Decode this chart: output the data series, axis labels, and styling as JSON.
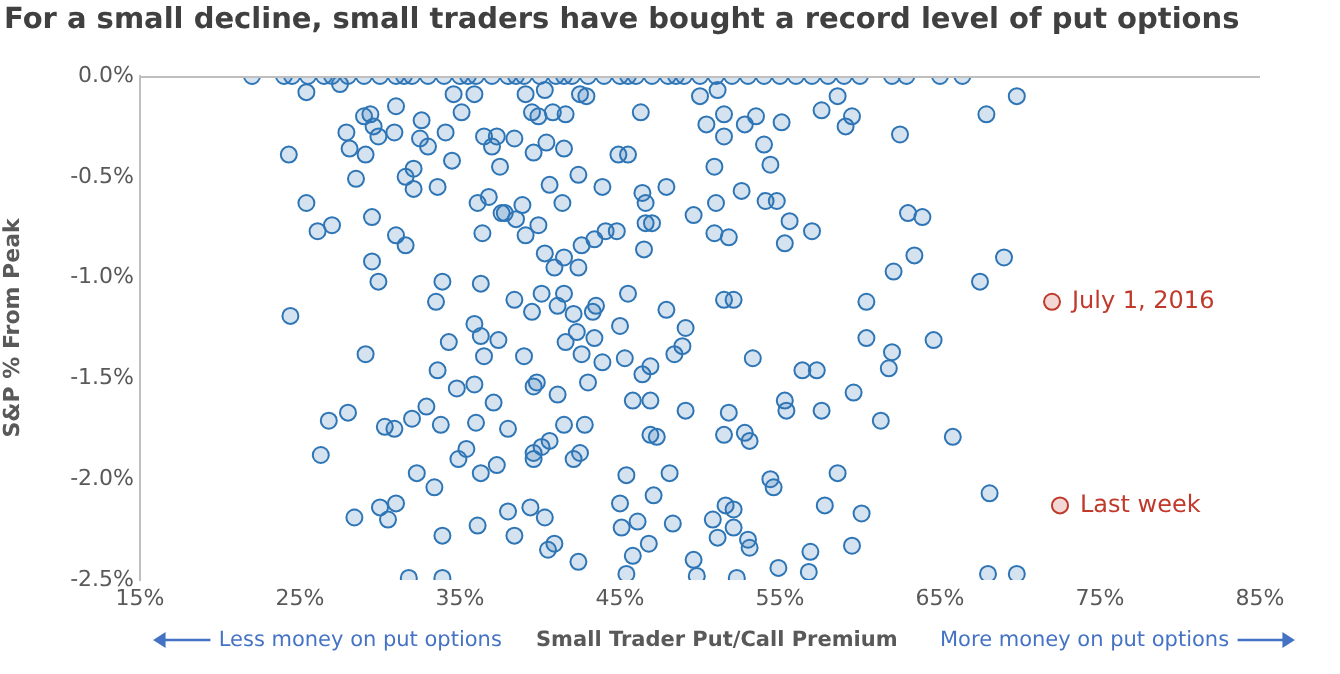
{
  "chart_data": {
    "type": "scatter",
    "title": "For a small decline, small traders have bought a record level of put options",
    "xlabel": "Small Trader Put/Call Premium",
    "ylabel": "S&P % From Peak",
    "xlim": [
      15,
      85
    ],
    "xticks": [
      {
        "value": 15,
        "label": "15%"
      },
      {
        "value": 25,
        "label": "25%"
      },
      {
        "value": 35,
        "label": "35%"
      },
      {
        "value": 45,
        "label": "45%"
      },
      {
        "value": 55,
        "label": "55%"
      },
      {
        "value": 65,
        "label": "65%"
      },
      {
        "value": 75,
        "label": "75%"
      },
      {
        "value": 85,
        "label": "85%"
      }
    ],
    "ylim": [
      -2.5,
      0
    ],
    "yticks": [
      {
        "value": -2.5,
        "label": "-2.5%"
      },
      {
        "value": -2,
        "label": "-2.0%"
      },
      {
        "value": -1.5,
        "label": "-1.5%"
      },
      {
        "value": -1,
        "label": "-1.0%"
      },
      {
        "value": -0.5,
        "label": "-0.5%"
      },
      {
        "value": 0,
        "label": "0.0%"
      }
    ],
    "grid": false,
    "legend": false,
    "marker": "circle",
    "annotations": [
      {
        "text": "July 1, 2016",
        "x": 72,
        "y": -1.12
      },
      {
        "text": "Last week",
        "x": 72.5,
        "y": -2.13
      },
      "Less money on put options",
      "More money on put options"
    ],
    "series": [
      {
        "color": "#2e75b6",
        "x": [
          22,
          24,
          24.5,
          25.5,
          26.5,
          27,
          28,
          29,
          30,
          31,
          31.5,
          32,
          33,
          34,
          35,
          35.5,
          36,
          37,
          38,
          38.5,
          39,
          40,
          41,
          41.5,
          42,
          43,
          44,
          45,
          45.5,
          46,
          47,
          48,
          48.5,
          49,
          50,
          51,
          52,
          53,
          54,
          55,
          56,
          57,
          58,
          59,
          60,
          62,
          62.9,
          65,
          66.4,
          25.4,
          27.5,
          24.3,
          27.9,
          29,
          29.4,
          29.6,
          29.9,
          28.1,
          29.1,
          28.5,
          31,
          30.9,
          32.6,
          32.5,
          33,
          34.1,
          34.6,
          35.1,
          35.9,
          34.5,
          31.6,
          32.1,
          32.1,
          33.6,
          37.5,
          36.5,
          37.3,
          37,
          25.4,
          26.1,
          27,
          29.5,
          31,
          31.6,
          29.5,
          29.9,
          36.1,
          36.8,
          37.6,
          36.4,
          33.9,
          33.5,
          36.3,
          24.4,
          29.1,
          34.3,
          35.9,
          36.3,
          36.5,
          37.4,
          33.6,
          34.8,
          35.9,
          37.1,
          32.9,
          32,
          28,
          26.8,
          30.3,
          30.9,
          33.8,
          36,
          38,
          26.3,
          35.4,
          34.9,
          37.3,
          36.3,
          32.3,
          33.4,
          30,
          31,
          28.4,
          30.5,
          38,
          36.1,
          33.9,
          38.4,
          31.8,
          33.9,
          39.1,
          40.3,
          42.5,
          42.9,
          39.5,
          39.9,
          40.8,
          41.6,
          38.4,
          39.6,
          40.4,
          41.5,
          44.9,
          45.5,
          46.3,
          50,
          51.1,
          50.4,
          51.5,
          51.5,
          52.8,
          53.5,
          55.1,
          54,
          50.9,
          54.4,
          57.6,
          58.6,
          59.1,
          59.5,
          62.5,
          42.4,
          40.6,
          41.4,
          38.9,
          37.8,
          38.5,
          39.9,
          39.1,
          43.9,
          46.4,
          46.6,
          47.9,
          46.6,
          47,
          44.1,
          44.8,
          46.5,
          43.4,
          42.6,
          40.3,
          41.5,
          40.9,
          42.4,
          49.6,
          51,
          50.9,
          51.8,
          52.6,
          54.1,
          54.8,
          55.6,
          57,
          55.3,
          62.1,
          38.4,
          39.5,
          40.1,
          41.1,
          41.5,
          42.1,
          43.3,
          43.5,
          45.5,
          45,
          47.9,
          49.1,
          48.9,
          48.4,
          51.5,
          52.1,
          39,
          41.6,
          42.3,
          42.6,
          43.4,
          43.9,
          45.3,
          46.4,
          46.9,
          39.6,
          39.8,
          41.1,
          43,
          45.8,
          46.9,
          49.1,
          51.8,
          53.3,
          56.4,
          57.3,
          55.3,
          55.4,
          57.6,
          59.6,
          60.4,
          60.4,
          61.8,
          62,
          61.3,
          41.5,
          42.8,
          39.6,
          39.6,
          40.1,
          40.6,
          42.1,
          42.5,
          46.9,
          47.3,
          51.5,
          52.8,
          53.1,
          45.4,
          48.1,
          47.1,
          54.4,
          54.6,
          58.6,
          39.4,
          40.3,
          40.5,
          40.9,
          42.4,
          45,
          45.1,
          46.1,
          46.8,
          45.8,
          45.4,
          48.3,
          49.6,
          49.8,
          50.8,
          51.1,
          51.6,
          52.1,
          52.1,
          53,
          53.1,
          52.3,
          54.9,
          56.9,
          56.8,
          57.8,
          59.5,
          60.1,
          69.8,
          67.9,
          63,
          63.9,
          63.4,
          69,
          67.5,
          64.6,
          65.8,
          68.1,
          68,
          69.8
        ],
        "values": [
          0,
          0,
          0,
          0,
          0,
          0,
          0,
          0,
          0,
          0,
          0,
          0,
          0,
          0,
          0,
          0,
          0,
          0,
          0,
          0,
          0,
          0,
          0,
          0,
          0,
          0,
          0,
          0,
          0,
          0,
          0,
          0,
          0,
          0,
          0,
          0,
          0,
          0,
          0,
          0,
          0,
          0,
          0,
          0,
          0,
          0,
          0,
          0,
          0,
          -0.08,
          -0.04,
          -0.39,
          -0.28,
          -0.2,
          -0.19,
          -0.25,
          -0.3,
          -0.36,
          -0.39,
          -0.51,
          -0.15,
          -0.28,
          -0.22,
          -0.31,
          -0.35,
          -0.28,
          -0.09,
          -0.18,
          -0.09,
          -0.42,
          -0.5,
          -0.46,
          -0.56,
          -0.55,
          -0.45,
          -0.3,
          -0.3,
          -0.35,
          -0.63,
          -0.77,
          -0.74,
          -0.7,
          -0.79,
          -0.84,
          -0.92,
          -1.02,
          -0.63,
          -0.6,
          -0.68,
          -0.78,
          -1.02,
          -1.12,
          -1.03,
          -1.19,
          -1.38,
          -1.32,
          -1.23,
          -1.29,
          -1.39,
          -1.31,
          -1.46,
          -1.55,
          -1.53,
          -1.62,
          -1.64,
          -1.7,
          -1.67,
          -1.71,
          -1.74,
          -1.75,
          -1.73,
          -1.72,
          -1.75,
          -1.88,
          -1.85,
          -1.9,
          -1.93,
          -1.97,
          -1.97,
          -2.04,
          -2.14,
          -2.12,
          -2.19,
          -2.2,
          -2.16,
          -2.23,
          -2.28,
          -2.28,
          -2.49,
          -2.49,
          -0.09,
          -0.07,
          -0.09,
          -0.1,
          -0.18,
          -0.2,
          -0.18,
          -0.19,
          -0.31,
          -0.38,
          -0.33,
          -0.36,
          -0.39,
          -0.39,
          -0.18,
          -0.1,
          -0.07,
          -0.24,
          -0.19,
          -0.3,
          -0.24,
          -0.2,
          -0.23,
          -0.34,
          -0.45,
          -0.44,
          -0.17,
          -0.1,
          -0.25,
          -0.2,
          -0.29,
          -0.49,
          -0.54,
          -0.63,
          -0.64,
          -0.68,
          -0.71,
          -0.74,
          -0.79,
          -0.55,
          -0.58,
          -0.63,
          -0.55,
          -0.73,
          -0.73,
          -0.77,
          -0.77,
          -0.86,
          -0.81,
          -0.84,
          -0.88,
          -0.9,
          -0.95,
          -0.95,
          -0.69,
          -0.63,
          -0.78,
          -0.8,
          -0.57,
          -0.62,
          -0.62,
          -0.72,
          -0.77,
          -0.83,
          -0.97,
          -1.11,
          -1.17,
          -1.08,
          -1.14,
          -1.08,
          -1.18,
          -1.17,
          -1.14,
          -1.08,
          -1.24,
          -1.16,
          -1.25,
          -1.34,
          -1.38,
          -1.11,
          -1.11,
          -1.39,
          -1.32,
          -1.27,
          -1.38,
          -1.3,
          -1.42,
          -1.4,
          -1.48,
          -1.44,
          -1.54,
          -1.52,
          -1.58,
          -1.52,
          -1.61,
          -1.61,
          -1.66,
          -1.67,
          -1.4,
          -1.46,
          -1.46,
          -1.61,
          -1.66,
          -1.66,
          -1.57,
          -1.3,
          -1.12,
          -1.45,
          -1.37,
          -1.71,
          -1.73,
          -1.73,
          -1.9,
          -1.87,
          -1.84,
          -1.81,
          -1.9,
          -1.87,
          -1.78,
          -1.79,
          -1.78,
          -1.77,
          -1.81,
          -1.98,
          -1.97,
          -2.08,
          -2,
          -2.04,
          -1.97,
          -2.14,
          -2.19,
          -2.35,
          -2.32,
          -2.41,
          -2.12,
          -2.24,
          -2.21,
          -2.32,
          -2.38,
          -2.47,
          -2.22,
          -2.4,
          -2.48,
          -2.2,
          -2.29,
          -2.13,
          -2.15,
          -2.24,
          -2.3,
          -2.34,
          -2.49,
          -2.44,
          -2.36,
          -2.46,
          -2.13,
          -2.33,
          -2.17,
          -0.1,
          -0.19,
          -0.68,
          -0.7,
          -0.89,
          -0.9,
          -1.02,
          -1.31,
          -1.79,
          -2.07,
          -2.47,
          -2.47
        ]
      },
      {
        "color": "#c0392b",
        "x": [
          72,
          72.5
        ],
        "values": [
          -1.12,
          -2.13
        ]
      }
    ]
  }
}
